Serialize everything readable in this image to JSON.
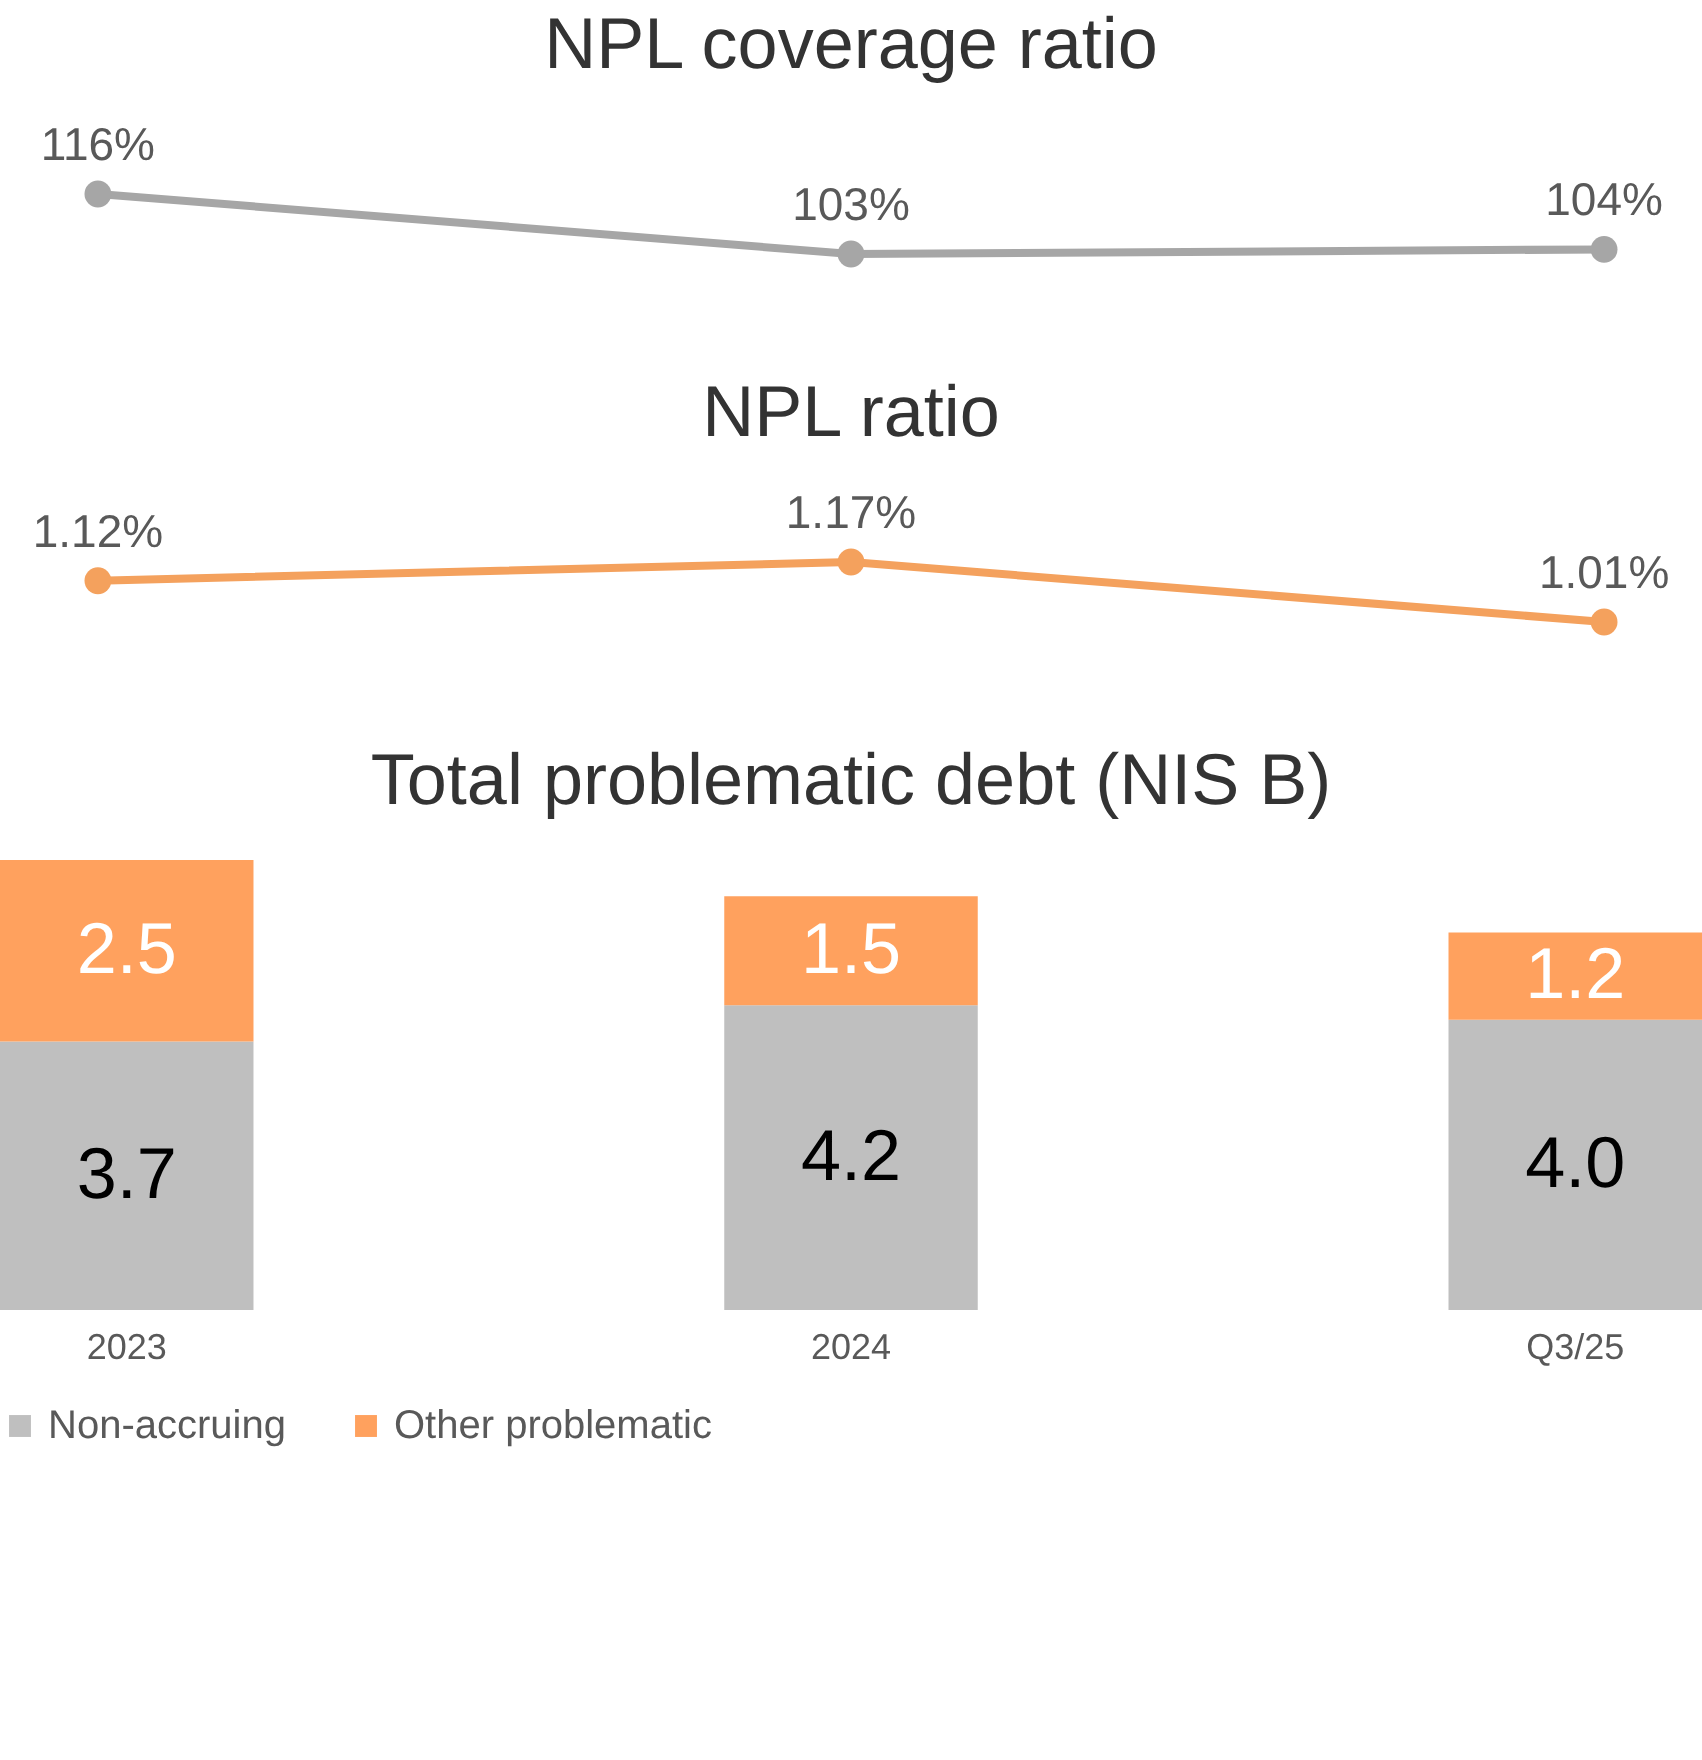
{
  "chart_data": [
    {
      "type": "line",
      "title": "NPL coverage ratio",
      "categories": [
        null,
        null,
        null
      ],
      "tick_labels": false,
      "marker": "circle",
      "data_labels": true,
      "series": [
        {
          "color": "#a6a6a6",
          "values": [
            116,
            103,
            104
          ],
          "value_labels": [
            "116%",
            "103%",
            "104%"
          ]
        }
      ]
    },
    {
      "type": "line",
      "title": "NPL ratio",
      "categories": [
        null,
        null,
        null
      ],
      "tick_labels": false,
      "marker": "circle",
      "data_labels": true,
      "series": [
        {
          "color": "#f4a15d",
          "values": [
            1.12,
            1.17,
            1.01
          ],
          "value_labels": [
            "1.12%",
            "1.17%",
            "1.01%"
          ]
        }
      ]
    },
    {
      "type": "bar",
      "title": "Total problematic debt (NIS B)",
      "categories": [
        "2023",
        "2024",
        "Q3/25"
      ],
      "stacked": true,
      "data_labels": true,
      "tick_labels": "x",
      "legend": "bottom",
      "series": [
        {
          "name": "Non-accruing",
          "color": "#bfbfbf",
          "values": [
            3.7,
            4.2,
            4.0
          ],
          "value_labels": [
            "3.7",
            "4.2",
            "4.0"
          ]
        },
        {
          "name": "Other problematic",
          "color": "#ffa15e",
          "values": [
            2.5,
            1.5,
            1.2
          ],
          "value_labels": [
            "2.5",
            "1.5",
            "1.2"
          ]
        }
      ]
    }
  ]
}
